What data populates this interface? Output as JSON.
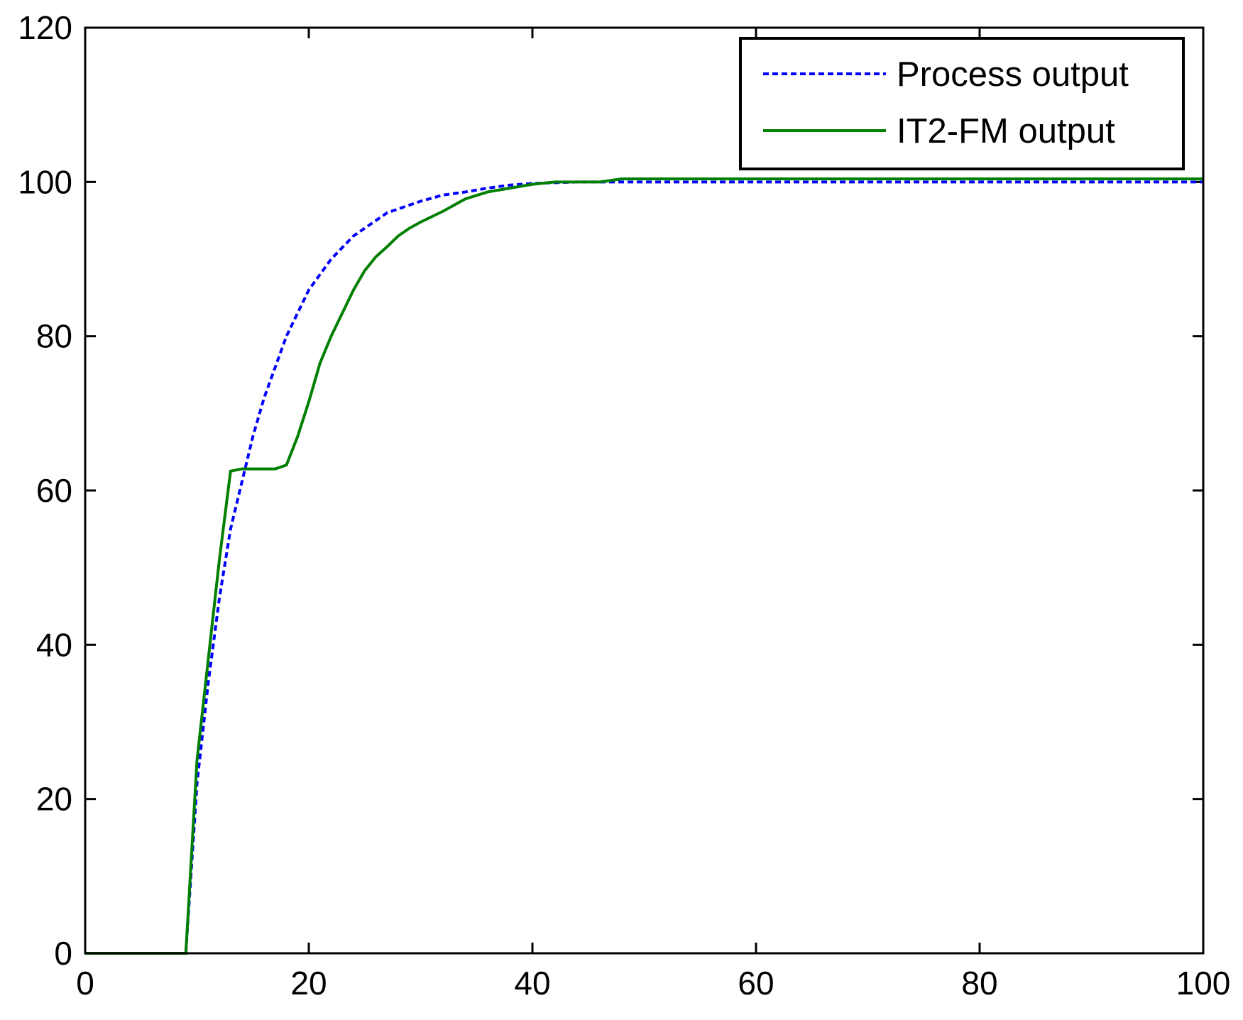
{
  "chart_data": {
    "type": "line",
    "x": [
      0,
      8,
      9,
      10,
      11,
      12,
      13,
      14,
      15,
      16,
      17,
      18,
      19,
      20,
      21,
      22,
      23,
      24,
      25,
      26,
      27,
      28,
      29,
      30,
      32,
      34,
      36,
      38,
      40,
      42,
      44,
      46,
      48,
      50,
      100
    ],
    "series": [
      {
        "name": "Process output",
        "color": "#0000ff",
        "dash": true,
        "values": [
          0,
          0,
          0,
          22,
          35,
          46,
          55,
          61,
          67,
          72,
          76,
          80,
          83,
          86,
          88,
          90,
          91.5,
          93,
          94,
          95,
          96,
          96.5,
          97,
          97.5,
          98.3,
          98.7,
          99.2,
          99.6,
          99.8,
          99.9,
          100,
          100,
          100,
          100,
          100
        ]
      },
      {
        "name": "IT2-FM output",
        "color": "#007f00",
        "dash": false,
        "values": [
          0,
          0,
          0,
          25,
          38,
          51,
          62.5,
          62.8,
          62.8,
          62.8,
          62.8,
          63.3,
          67,
          71.5,
          76.5,
          80,
          83,
          86,
          88.5,
          90.3,
          91.6,
          93,
          94,
          94.8,
          96.2,
          97.8,
          98.7,
          99.2,
          99.7,
          100,
          100,
          100,
          100.4,
          100.4,
          100.4
        ]
      }
    ],
    "xlim": [
      0,
      100
    ],
    "xticks": [
      0,
      20,
      40,
      60,
      80,
      100
    ],
    "ylim": [
      0,
      120
    ],
    "yticks": [
      0,
      20,
      40,
      60,
      80,
      100,
      120
    ],
    "grid": false,
    "legend": "top-right"
  }
}
